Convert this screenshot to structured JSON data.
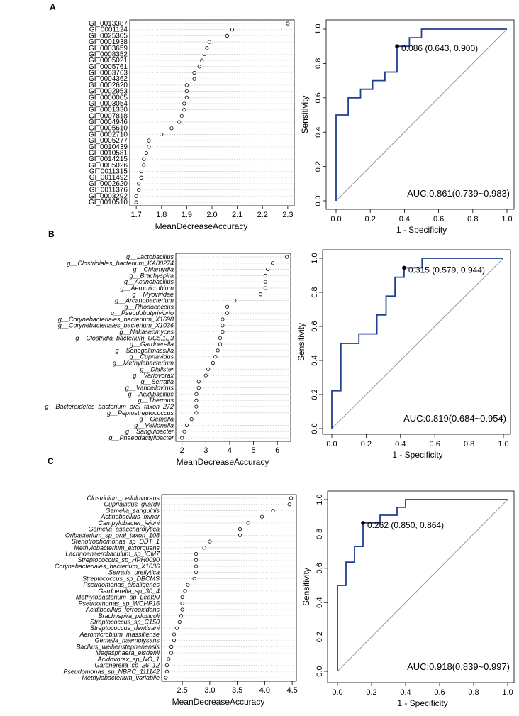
{
  "panels": [
    {
      "letter": "A",
      "dotplot": {
        "type": "scatter",
        "xlabel": "MeanDecreaseAccuracy",
        "xlim": [
          1.68,
          2.32
        ],
        "xticks": [
          1.7,
          1.8,
          1.9,
          2.0,
          2.1,
          2.2,
          2.3
        ],
        "xtick_labels": [
          "1.7",
          "1.8",
          "1.9",
          "2.0",
          "2.1",
          "2.2",
          "2.3"
        ],
        "italic": false,
        "categories": [
          "GI_0013387",
          "GI_0001124",
          "GI_0025305",
          "GI_0001938",
          "GI_0003659",
          "GI_0008352",
          "GI_0005021",
          "GI_0005761",
          "GI_0063763",
          "GI_0004362",
          "GI_0002620",
          "GI_0002953",
          "GI_0000005",
          "GI_0003054",
          "GI_0001330",
          "GI_0007818",
          "GI_0004946",
          "GI_0005610",
          "GI_0002710",
          "GI_0005277",
          "GI_0010439",
          "GI_0010581",
          "GI_0014215",
          "GI_0005026",
          "GI_0011315",
          "GI_0011492",
          "GI_0002620",
          "GI_0011376",
          "GI_0003292",
          "GI_0010510"
        ],
        "values": [
          2.3,
          2.08,
          2.06,
          1.99,
          1.98,
          1.97,
          1.96,
          1.95,
          1.93,
          1.93,
          1.9,
          1.9,
          1.9,
          1.89,
          1.89,
          1.88,
          1.87,
          1.84,
          1.8,
          1.75,
          1.75,
          1.74,
          1.73,
          1.73,
          1.72,
          1.72,
          1.71,
          1.71,
          1.7,
          1.7
        ]
      },
      "roc": {
        "type": "line",
        "xlabel": "1 - Specificity",
        "ylabel": "Sensitivity",
        "ticks": [
          "0.0",
          "0.2",
          "0.4",
          "0.6",
          "0.8",
          "1.0"
        ],
        "x": [
          0,
          0,
          0.071,
          0.071,
          0.143,
          0.143,
          0.214,
          0.214,
          0.286,
          0.286,
          0.357,
          0.357,
          0.429,
          0.429,
          0.5,
          0.5,
          1.0
        ],
        "y": [
          0,
          0.5,
          0.5,
          0.6,
          0.6,
          0.65,
          0.65,
          0.7,
          0.7,
          0.75,
          0.75,
          0.9,
          0.9,
          0.95,
          0.95,
          1.0,
          1.0
        ],
        "optimal_point": {
          "x": 0.357,
          "y": 0.9
        },
        "optimal_label": "0.086 (0.643, 0.900)",
        "auc_label": "AUC:0.861(0.739~0.983)",
        "line_color": "#1f3f8f",
        "diag_color": "#9a9a9a"
      }
    },
    {
      "letter": "B",
      "dotplot": {
        "type": "scatter",
        "xlabel": "MeanDecreaseAccuracy",
        "xlim": [
          1.8,
          6.5
        ],
        "xticks": [
          2,
          3,
          4,
          5,
          6
        ],
        "xtick_labels": [
          "2",
          "3",
          "4",
          "5",
          "6"
        ],
        "italic": true,
        "categories": [
          "g__Lactobacillus",
          "g__Clostridiales_bacterium_KA00274",
          "g__Chlamydia",
          "g__Brachyspira",
          "g__Actinobacillus",
          "g__Aeromicrobium",
          "g__Myoviridae",
          "g__Arcanobacterium",
          "g__Rhodococcus",
          "g__Pseudobutyrivibrio",
          "g__Corynebacteriales_bacterium_X1698",
          "g__Corynebacteriales_bacterium_X1036",
          "g__Nakaseomyces",
          "g__Clostridia_bacterium_UC5.1E3",
          "g__Gardnerella",
          "g__Senegalimassilia",
          "g__Cupriavidus",
          "g__Methylobacterium",
          "g__Dialister",
          "g__Variovorax",
          "g__Serratia",
          "g__Varicellovirus",
          "g__Acidibacillus",
          "g__Thermus",
          "g__Bacteroidetes_bacterium_oral_taxon_272",
          "g__Peptostreptococcus",
          "g__Gemella",
          "g__Veillonella",
          "g__Sanguibacter",
          "g__Phaeodactylibacter"
        ],
        "values": [
          6.4,
          5.8,
          5.6,
          5.5,
          5.5,
          5.5,
          5.3,
          4.2,
          3.9,
          3.9,
          3.7,
          3.7,
          3.7,
          3.6,
          3.6,
          3.5,
          3.4,
          3.3,
          3.1,
          3.0,
          2.7,
          2.7,
          2.6,
          2.6,
          2.6,
          2.6,
          2.4,
          2.2,
          2.1,
          2.0
        ]
      },
      "roc": {
        "type": "line",
        "xlabel": "1 - Specificity",
        "ylabel": "Sensitivity",
        "ticks": [
          "0.0",
          "0.2",
          "0.4",
          "0.6",
          "0.8",
          "1.0"
        ],
        "x": [
          0,
          0,
          0.053,
          0.053,
          0.158,
          0.158,
          0.263,
          0.263,
          0.316,
          0.316,
          0.368,
          0.368,
          0.421,
          0.421,
          0.526,
          0.526,
          1.0
        ],
        "y": [
          0,
          0.222,
          0.222,
          0.5,
          0.5,
          0.556,
          0.556,
          0.667,
          0.667,
          0.778,
          0.778,
          0.889,
          0.889,
          0.944,
          0.944,
          1.0,
          1.0
        ],
        "optimal_point": {
          "x": 0.421,
          "y": 0.944
        },
        "optimal_label": "0.315 (0.579, 0.944)",
        "auc_label": "AUC:0.819(0.684~0.954)",
        "line_color": "#1f3f8f",
        "diag_color": "#9a9a9a"
      }
    },
    {
      "letter": "C",
      "dotplot": {
        "type": "scatter",
        "xlabel": "MeanDecreaseAccuracy",
        "xlim": [
          2.15,
          4.55
        ],
        "xticks": [
          2.5,
          3.0,
          3.5,
          4.0,
          4.5
        ],
        "xtick_labels": [
          "2.5",
          "3.0",
          "3.5",
          "4.0",
          "4.5"
        ],
        "italic": true,
        "categories": [
          "Clostridium_cellulovorans",
          "Cupriavidus_gilardii",
          "Gemella_sanguinis",
          "Actinobacillus_minor",
          "Campylobacter_jejuni",
          "Gemella_asaccharolytica",
          "Oribacterium_sp_oral_taxon_108",
          "Stenotrophomonas_sp_DDT_1",
          "Methylobacterium_extorquens",
          "Lachnoanaerobaculum_sp_ICM7",
          "Streptococcus_sp_HPH0090",
          "Corynebacteriales_bacterium_X1036",
          "Serratia_ureilytica",
          "Streptococcus_sp_DBCMS",
          "Pseudomonas_alcaligenes",
          "Gardnerella_sp_30_4",
          "Methylobacterium_sp_Leaf90",
          "Pseudomonas_sp_WCHP16",
          "Acidibacillus_ferrooxidans",
          "Brachyspira_pilosicoli",
          "Streptococcus_sp_C150",
          "Streptococcus_dentisani",
          "Aeromicrobium_massiliense",
          "Gemella_haemolysans",
          "Bacillus_weihenstephanensis",
          "Megasphaera_elsdenii",
          "Acidovorax_sp_NO_1",
          "Gardnerella_sp_26_12",
          "Pseudomonas_sp_NBRC_111142",
          "Methylobacterium_variabile"
        ],
        "values": [
          4.48,
          4.45,
          4.15,
          3.95,
          3.7,
          3.55,
          3.55,
          3.0,
          2.9,
          2.75,
          2.75,
          2.75,
          2.75,
          2.72,
          2.6,
          2.55,
          2.5,
          2.5,
          2.5,
          2.48,
          2.45,
          2.4,
          2.35,
          2.35,
          2.3,
          2.3,
          2.25,
          2.22,
          2.22,
          2.2
        ]
      },
      "roc": {
        "type": "line",
        "xlabel": "1 - Specificity",
        "ylabel": "Sensitivity",
        "ticks": [
          "0.0",
          "0.2",
          "0.4",
          "0.6",
          "0.8",
          "1.0"
        ],
        "x": [
          0,
          0,
          0.05,
          0.05,
          0.1,
          0.1,
          0.15,
          0.15,
          0.25,
          0.25,
          0.35,
          0.35,
          0.4,
          0.4,
          1.0
        ],
        "y": [
          0,
          0.5,
          0.5,
          0.636,
          0.636,
          0.727,
          0.727,
          0.864,
          0.864,
          0.909,
          0.909,
          0.955,
          0.955,
          1.0,
          1.0
        ],
        "optimal_point": {
          "x": 0.15,
          "y": 0.864
        },
        "optimal_label": "0.262 (0.850, 0.864)",
        "auc_label": "AUC:0.918(0.839~0.997)",
        "line_color": "#1f3f8f",
        "diag_color": "#9a9a9a"
      }
    }
  ]
}
